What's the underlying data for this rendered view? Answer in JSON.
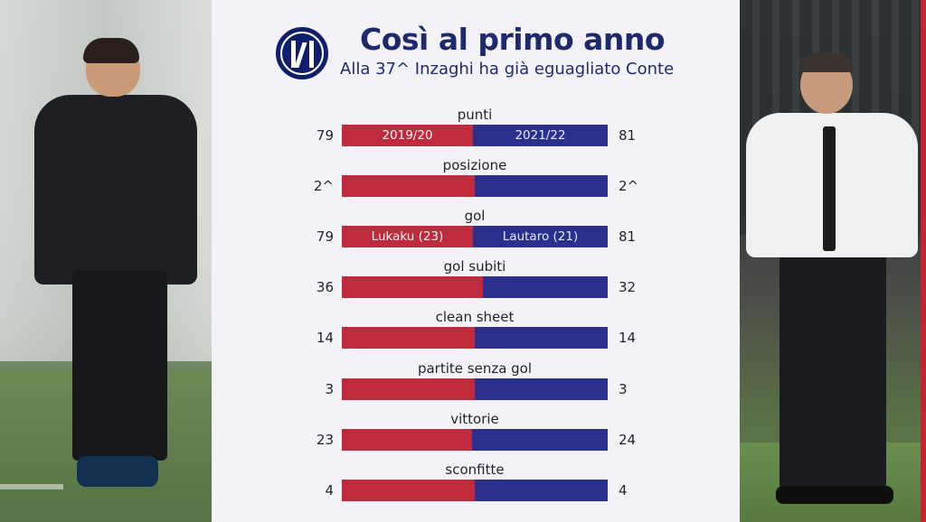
{
  "header": {
    "title": "Così al primo anno",
    "subtitle": "Alla 37^ Inzaghi ha già eguagliato Conte"
  },
  "colors": {
    "red": "#bf2b3c",
    "blue": "#2b2f8e",
    "title": "#1f2a6e"
  },
  "stats": [
    {
      "label": "punti",
      "left": "79",
      "right": "81",
      "red_text": "2019/20",
      "blue_text": "2021/22",
      "red_share": 0.494
    },
    {
      "label": "posizione",
      "left": "2^",
      "right": "2^",
      "red_text": "",
      "blue_text": "",
      "red_share": 0.5
    },
    {
      "label": "gol",
      "left": "79",
      "right": "81",
      "red_text": "Lukaku (23)",
      "blue_text": "Lautaro (21)",
      "red_share": 0.494
    },
    {
      "label": "gol subiti",
      "left": "36",
      "right": "32",
      "red_text": "",
      "blue_text": "",
      "red_share": 0.53
    },
    {
      "label": "clean sheet",
      "left": "14",
      "right": "14",
      "red_text": "",
      "blue_text": "",
      "red_share": 0.5
    },
    {
      "label": "partite senza gol",
      "left": "3",
      "right": "3",
      "red_text": "",
      "blue_text": "",
      "red_share": 0.5
    },
    {
      "label": "vittorie",
      "left": "23",
      "right": "24",
      "red_text": "",
      "blue_text": "",
      "red_share": 0.49
    },
    {
      "label": "sconfitte",
      "left": "4",
      "right": "4",
      "red_text": "",
      "blue_text": "",
      "red_share": 0.5
    }
  ]
}
